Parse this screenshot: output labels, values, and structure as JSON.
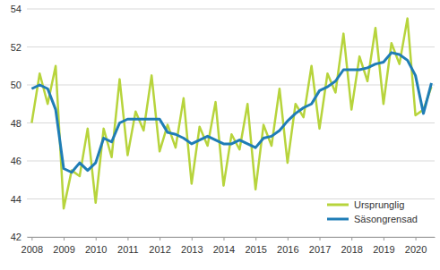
{
  "chart_data": {
    "type": "line",
    "x": [
      2008,
      2008.25,
      2008.5,
      2008.75,
      2009,
      2009.25,
      2009.5,
      2009.75,
      2010,
      2010.25,
      2010.5,
      2010.75,
      2011,
      2011.25,
      2011.5,
      2011.75,
      2012,
      2012.25,
      2012.5,
      2012.75,
      2013,
      2013.25,
      2013.5,
      2013.75,
      2014,
      2014.25,
      2014.5,
      2014.75,
      2015,
      2015.25,
      2015.5,
      2015.75,
      2016,
      2016.25,
      2016.5,
      2016.75,
      2017,
      2017.25,
      2017.5,
      2017.75,
      2018,
      2018.25,
      2018.5,
      2018.75,
      2019,
      2019.25,
      2019.5,
      2019.75,
      2020,
      2020.25,
      2020.5
    ],
    "series": [
      {
        "name": "Ursprunglig",
        "color": "#b7d43c",
        "values": [
          48.0,
          50.6,
          49.0,
          51.0,
          43.5,
          45.5,
          45.2,
          47.7,
          43.8,
          47.7,
          46.2,
          50.3,
          46.3,
          48.6,
          47.6,
          50.5,
          46.5,
          47.9,
          46.7,
          49.3,
          44.8,
          47.8,
          46.8,
          49.1,
          44.7,
          47.4,
          46.6,
          49.0,
          44.5,
          47.9,
          46.8,
          49.8,
          45.9,
          49.0,
          48.3,
          51.0,
          47.7,
          50.6,
          49.6,
          52.7,
          48.7,
          51.5,
          50.2,
          53.0,
          49.0,
          52.2,
          51.1,
          53.5,
          48.4,
          48.7,
          49.9
        ]
      },
      {
        "name": "Säsongrensad",
        "color": "#1f7db6",
        "values": [
          49.8,
          50.0,
          49.8,
          48.7,
          45.6,
          45.4,
          45.9,
          45.5,
          45.9,
          47.2,
          47.0,
          48.0,
          48.2,
          48.2,
          48.2,
          48.2,
          48.2,
          47.5,
          47.4,
          47.2,
          46.9,
          47.1,
          47.3,
          47.1,
          46.9,
          46.9,
          47.1,
          46.9,
          46.7,
          47.2,
          47.3,
          47.6,
          48.1,
          48.5,
          48.8,
          49.0,
          49.7,
          49.9,
          50.2,
          50.8,
          50.8,
          50.8,
          50.9,
          51.1,
          51.2,
          51.7,
          51.6,
          51.3,
          50.5,
          48.5,
          50.1
        ]
      }
    ],
    "xlim": [
      2007.85,
      2020.6
    ],
    "xticks": [
      2008,
      2009,
      2010,
      2011,
      2012,
      2013,
      2014,
      2015,
      2016,
      2017,
      2018,
      2019,
      2020
    ],
    "ylim": [
      42,
      54
    ],
    "yticks": [
      42,
      44,
      46,
      48,
      50,
      52,
      54
    ],
    "grid": true,
    "legend": "lower right"
  }
}
